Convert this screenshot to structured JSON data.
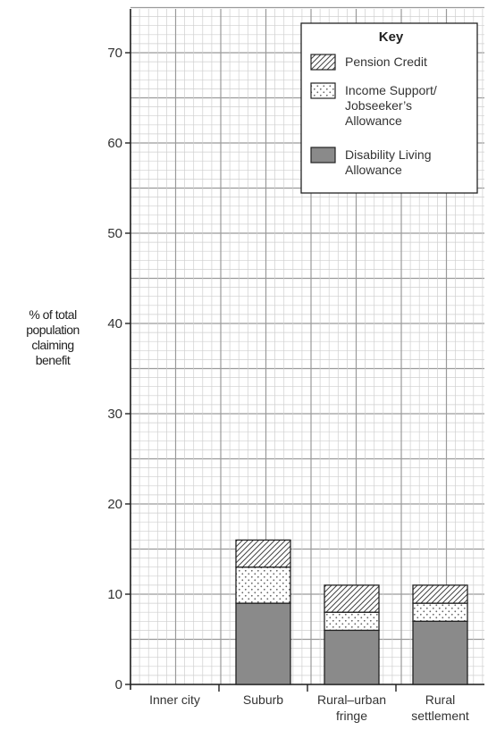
{
  "chart_data": {
    "type": "bar",
    "stacked": true,
    "ylabel_lines": [
      "% of total",
      "population",
      "claiming",
      "benefit"
    ],
    "ylim": [
      0,
      75
    ],
    "yticks": [
      0,
      10,
      20,
      30,
      40,
      50,
      60,
      70
    ],
    "grid": true,
    "legend_title": "Key",
    "legend_position": "top-right",
    "categories": [
      [
        "Inner city"
      ],
      [
        "Suburb"
      ],
      [
        "Rural–urban",
        "fringe"
      ],
      [
        "Rural",
        "settlement"
      ]
    ],
    "series": [
      {
        "name_lines": [
          "Disability Living",
          "Allowance"
        ],
        "pattern": "solid-grey",
        "color": "#8a8a8a",
        "values": [
          null,
          9,
          6,
          7
        ]
      },
      {
        "name_lines": [
          "Income Support/",
          "Jobseeker’s",
          "Allowance"
        ],
        "pattern": "dotted",
        "color": "#ffffff",
        "values": [
          null,
          4,
          2,
          2
        ]
      },
      {
        "name_lines": [
          "Pension Credit"
        ],
        "pattern": "hatched",
        "color": "#ffffff",
        "values": [
          null,
          3,
          3,
          2
        ]
      }
    ]
  }
}
